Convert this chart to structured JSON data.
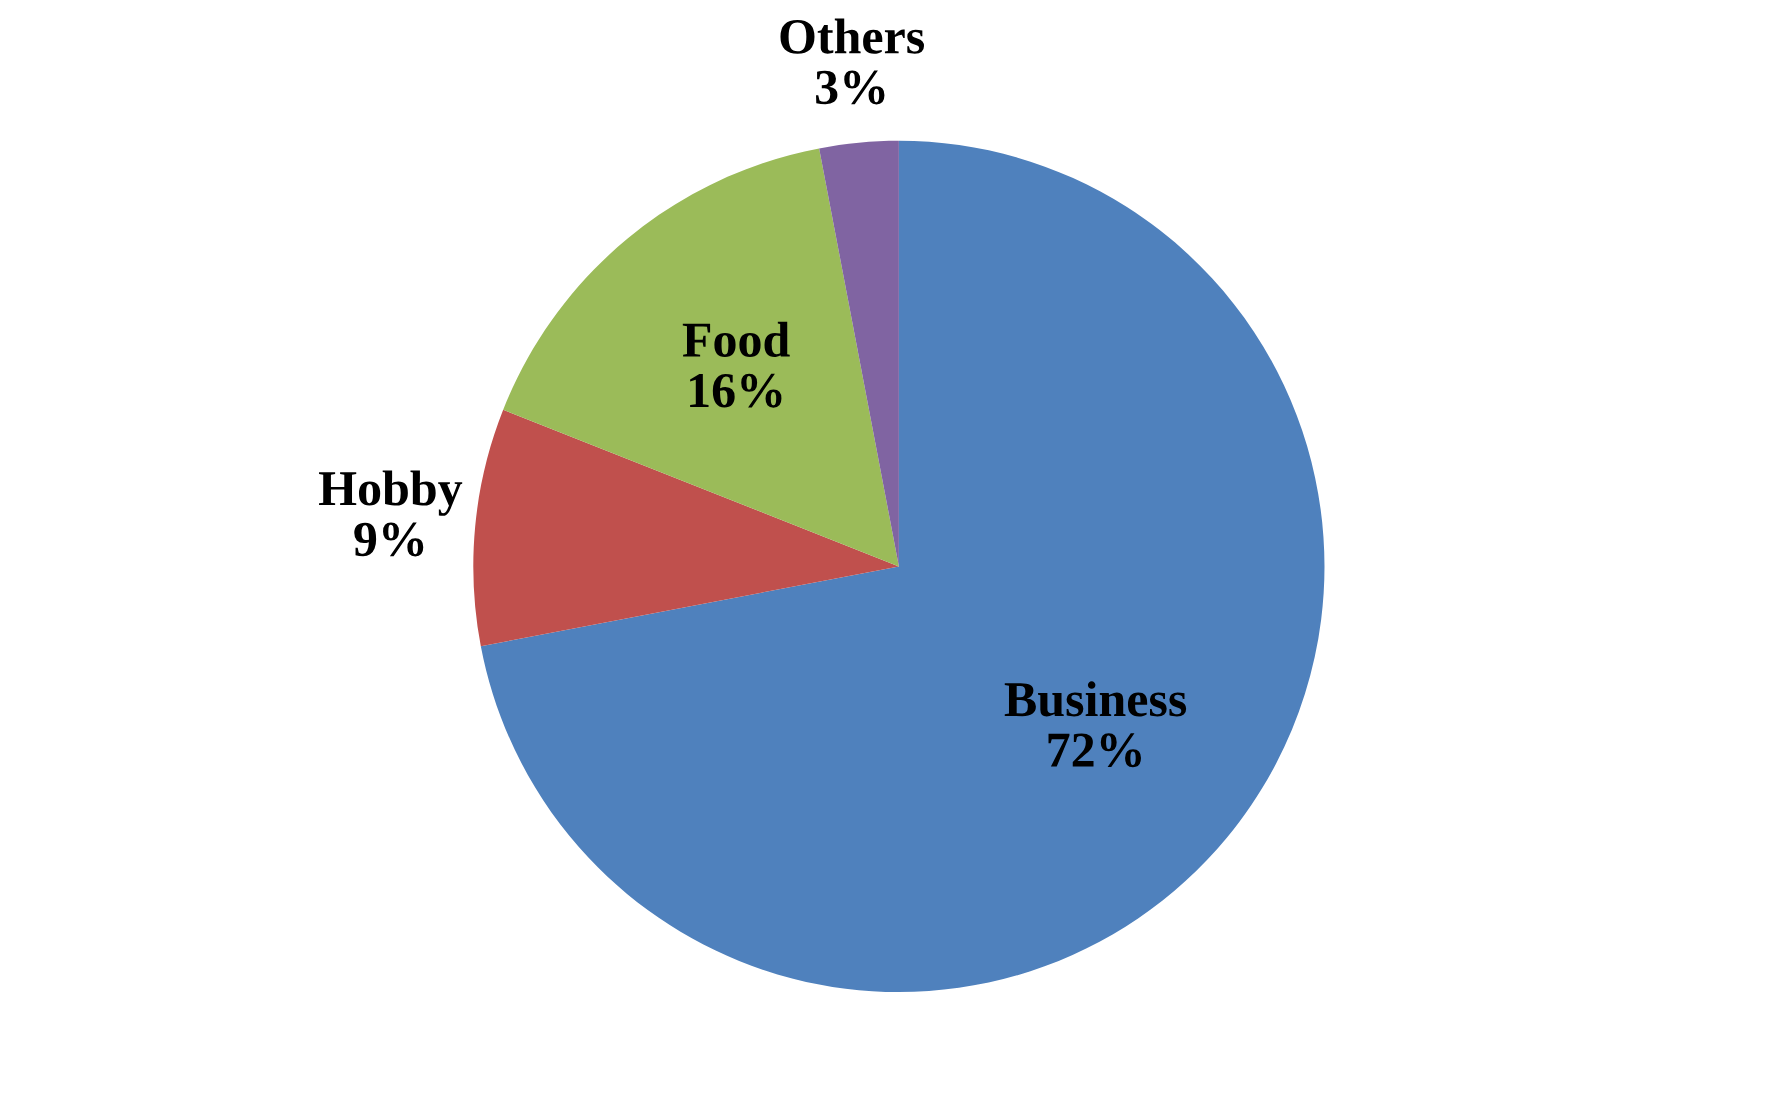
{
  "chart_data": {
    "type": "pie",
    "categories": [
      "Business",
      "Hobby",
      "Food",
      "Others"
    ],
    "values": [
      72,
      9,
      16,
      3
    ],
    "colors": [
      "#4f81bd",
      "#c0504d",
      "#9bbb59",
      "#8064a2"
    ],
    "value_labels": [
      "72%",
      "9%",
      "16%",
      "3%"
    ],
    "legend": false
  }
}
